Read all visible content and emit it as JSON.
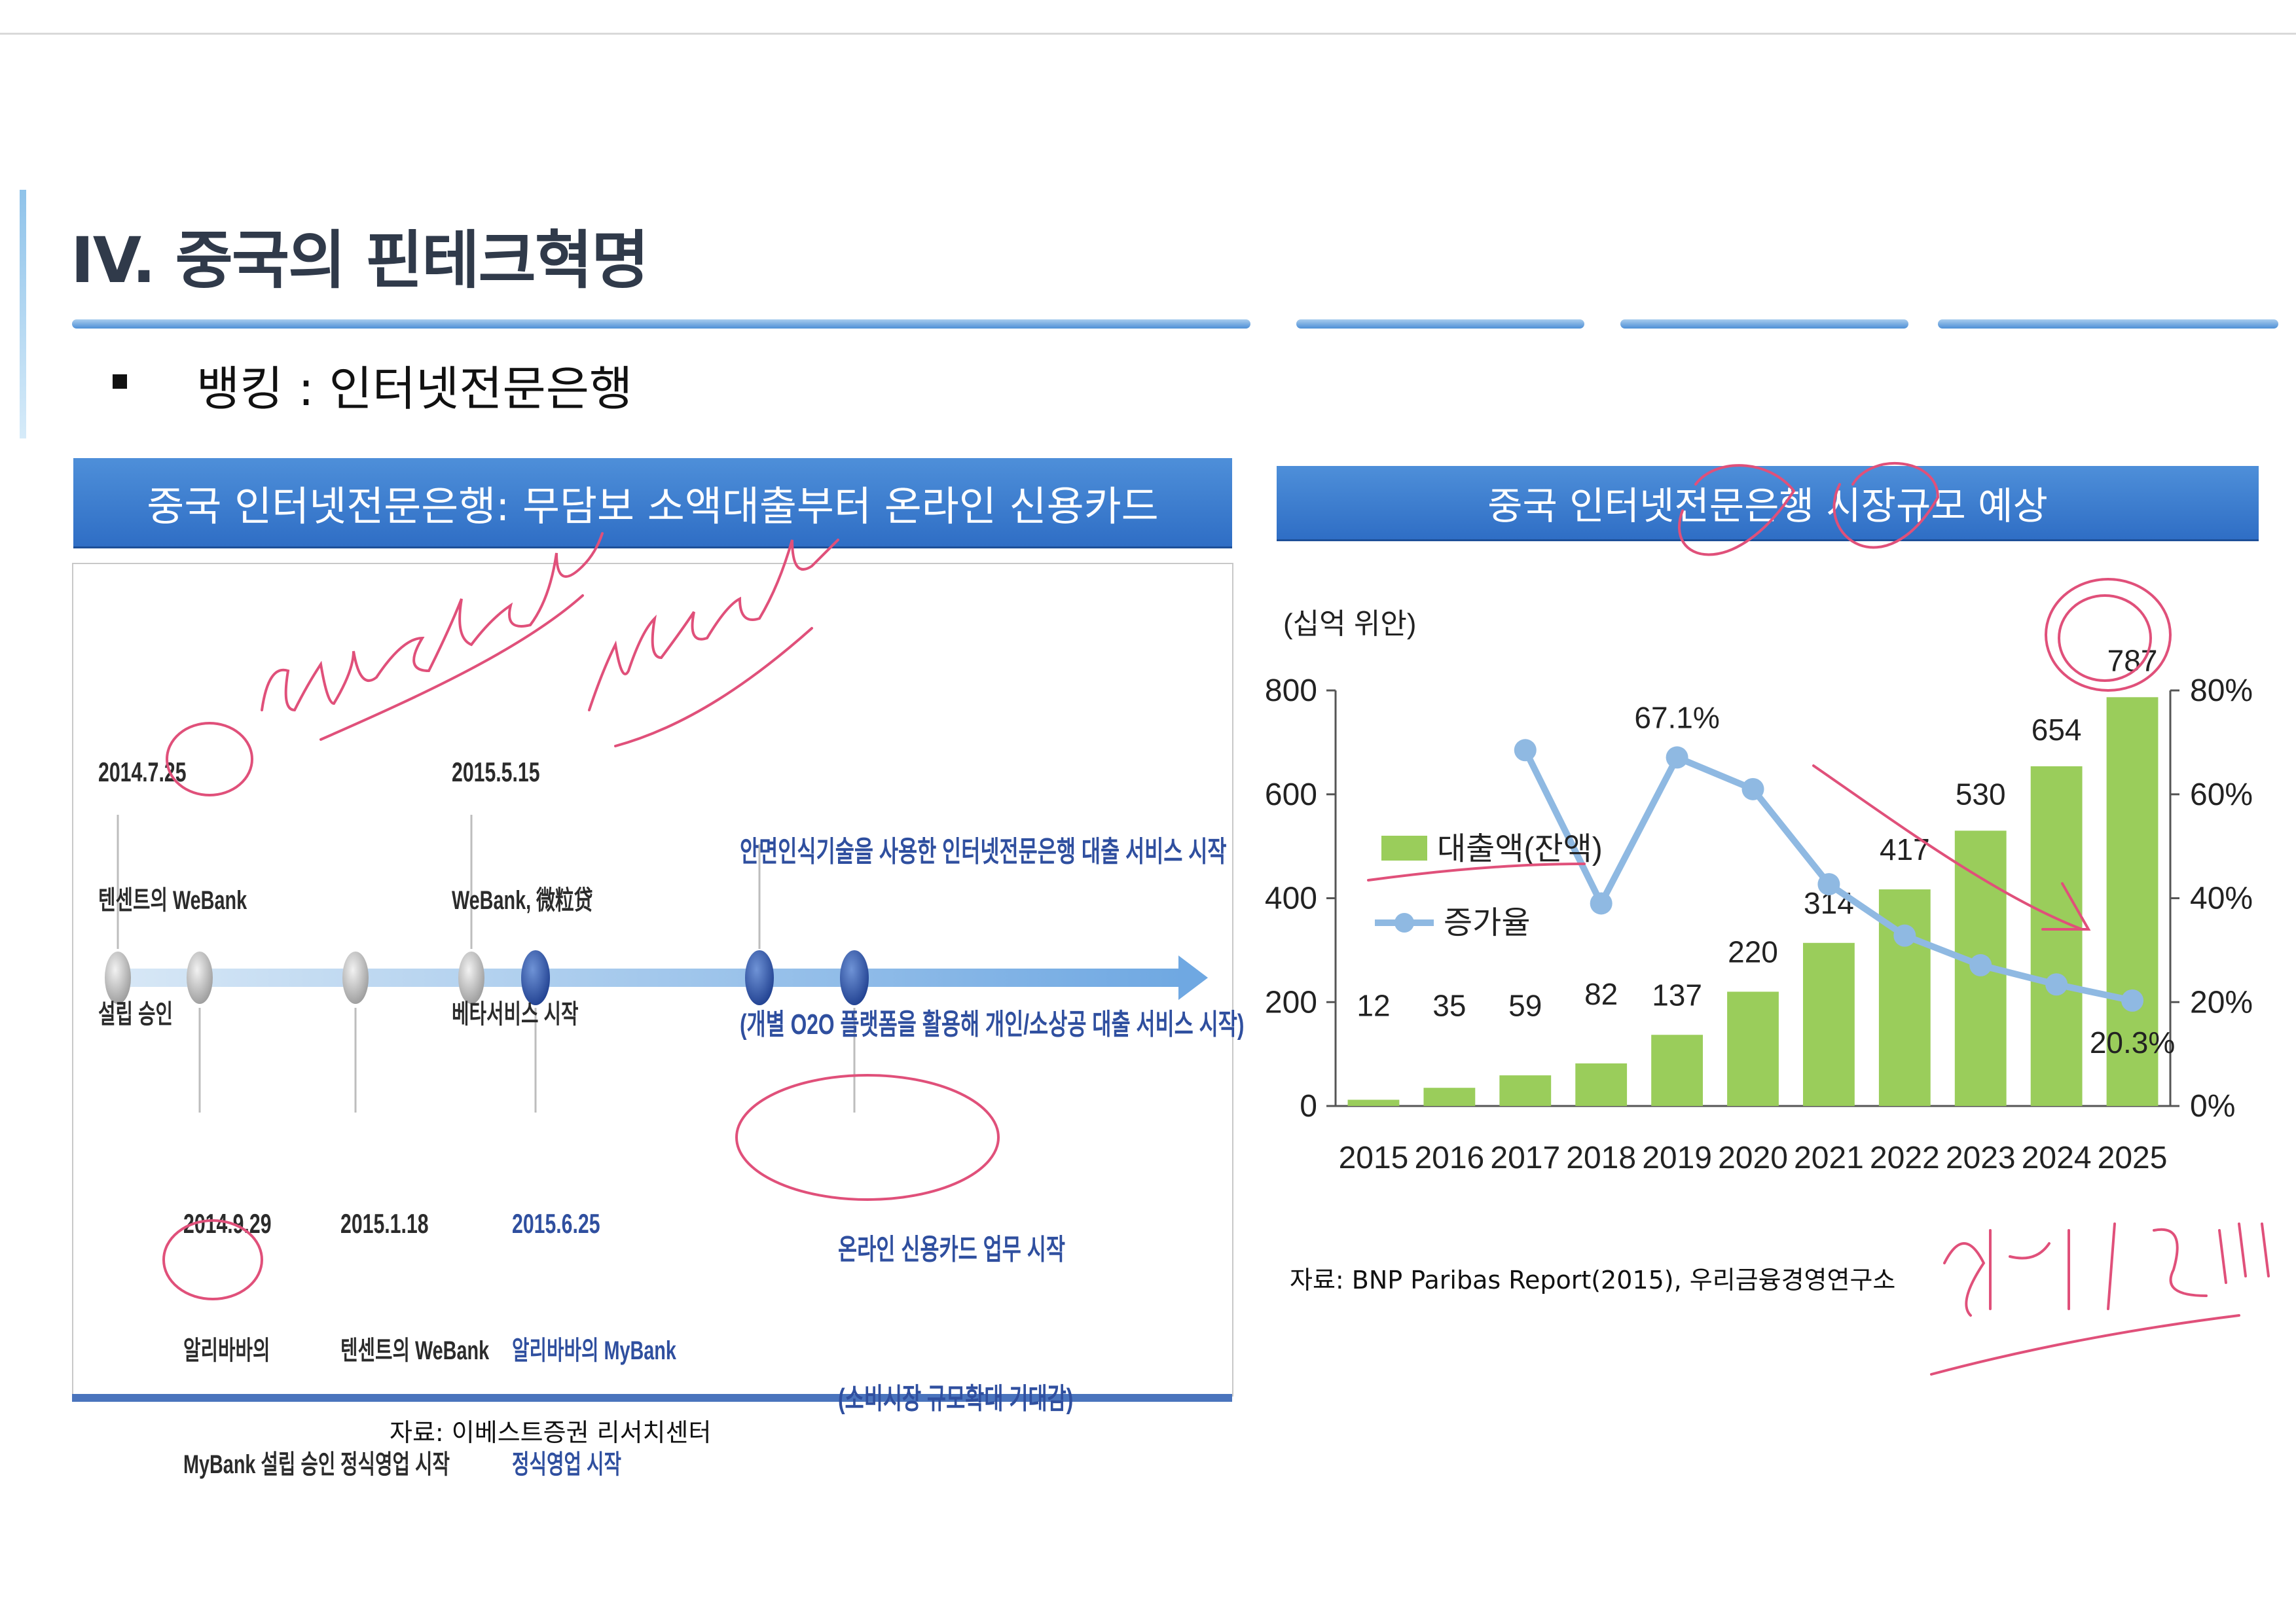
{
  "header": {
    "title": "IV. 중국의 핀테크혁명",
    "bullet": "뱅킹 : 인터넷전문은행"
  },
  "left_panel": {
    "banner": "중국 인터넷전문은행: 무담보 소액대출부터 온라인 신용카드",
    "source": "자료: 이베스트증권 리서치센터",
    "events_top": [
      {
        "date": "2014.7.25",
        "lines": [
          "텐센트의 WeBank",
          "설립 승인"
        ]
      },
      {
        "date": "2015.5.15",
        "lines": [
          "WeBank, 微粒贷",
          "베타서비스 시작"
        ]
      },
      {
        "date": "",
        "lines": [
          "안면인식기술을 사용한 인터넷전문은행 대출 서비스 시작",
          "(개별 O2O 플랫폼을 활용해 개인/소상공 대출 서비스 시작)"
        ]
      }
    ],
    "events_bottom": [
      {
        "date": "2014.9.29",
        "lines": [
          "알리바바의",
          "MyBank 설립 승인"
        ]
      },
      {
        "date": "2015.1.18",
        "lines": [
          "텐센트의 WeBank",
          "정식영업 시작"
        ]
      },
      {
        "date": "2015.6.25",
        "lines": [
          "알리바바의 MyBank",
          "정식영업 시작"
        ]
      },
      {
        "date": "",
        "lines": [
          "온라인 신용카드 업무 시작",
          "(소비시장 규모확대 기대감)"
        ]
      }
    ]
  },
  "right_panel": {
    "banner": "중국 인터넷전문은행 시장규모 예상",
    "source": "자료: BNP Paribas Report(2015), 우리금융경영연구소"
  },
  "chart_data": {
    "type": "bar",
    "title": "중국 인터넷전문은행 시장규모 예상",
    "unit_label": "(십억 위안)",
    "categories": [
      "2015",
      "2016",
      "2017",
      "2018",
      "2019",
      "2020",
      "2021",
      "2022",
      "2023",
      "2024",
      "2025"
    ],
    "series": [
      {
        "name": "대출액(잔액)",
        "type": "bar",
        "axis": "left",
        "color": "#9acd5b",
        "values": [
          12,
          35,
          59,
          82,
          137,
          220,
          314,
          417,
          530,
          654,
          787
        ],
        "data_labels": [
          "12",
          "35",
          "59",
          "82",
          "137",
          "220",
          "314",
          "417",
          "530",
          "654",
          "787"
        ]
      },
      {
        "name": "증가율",
        "type": "line",
        "axis": "right",
        "color": "#8fb9e2",
        "values": [
          null,
          null,
          68.5,
          39.0,
          67.1,
          61.0,
          42.7,
          32.8,
          27.1,
          23.4,
          20.3
        ],
        "labeled": {
          "2019": "67.1%",
          "2025": "20.3%"
        }
      }
    ],
    "y_left": {
      "ticks": [
        "0",
        "200",
        "400",
        "600",
        "800"
      ],
      "lim": [
        0,
        800
      ]
    },
    "y_right": {
      "ticks": [
        "0%",
        "20%",
        "40%",
        "60%",
        "80%"
      ],
      "lim": [
        0,
        80
      ]
    },
    "legend": "left-middle",
    "grid": false
  },
  "annotations": {
    "handwritten": [
      "WeBank",
      "MyBank",
      "한계치!!!"
    ]
  }
}
